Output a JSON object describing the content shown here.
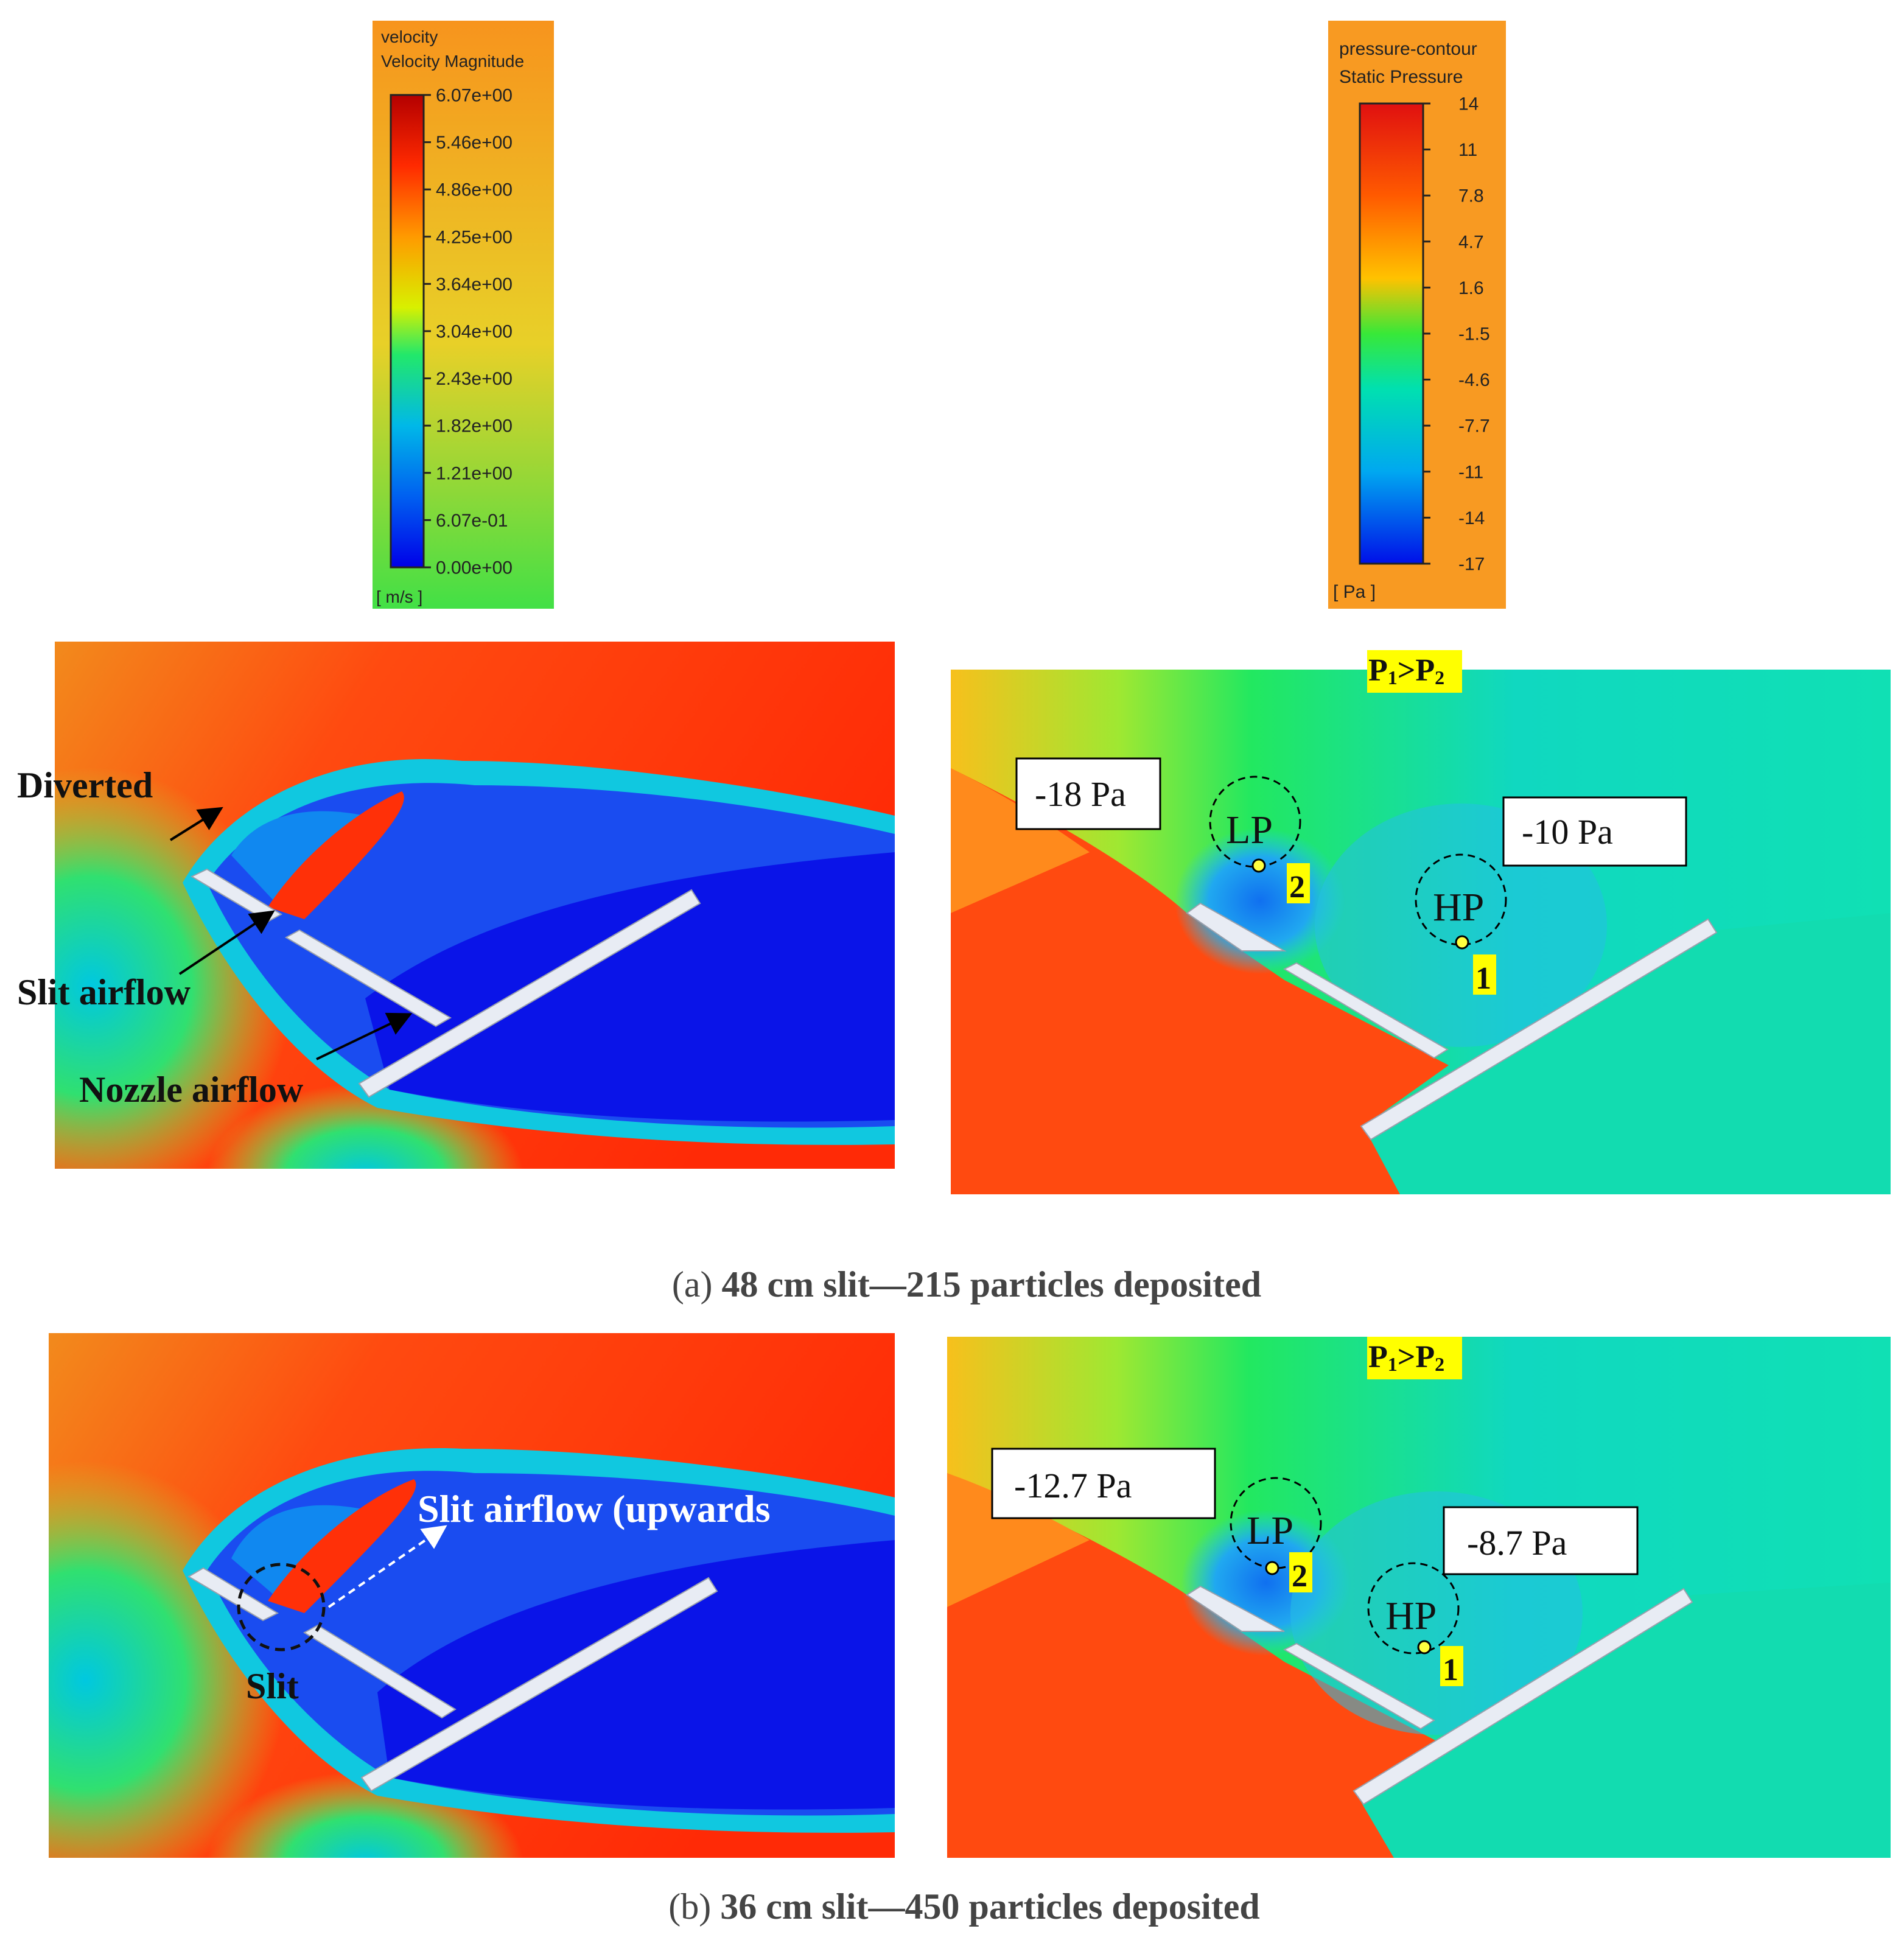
{
  "velocity_legend": {
    "title": "velocity",
    "subtitle": "Velocity Magnitude",
    "ticks": [
      "6.07e+00",
      "5.46e+00",
      "4.86e+00",
      "4.25e+00",
      "3.64e+00",
      "3.04e+00",
      "2.43e+00",
      "1.82e+00",
      "1.21e+00",
      "6.07e-01",
      "0.00e+00"
    ],
    "unit": "[ m/s ]"
  },
  "pressure_legend": {
    "title": "pressure-contour",
    "subtitle": "Static Pressure",
    "ticks": [
      "14",
      "11",
      "7.8",
      "4.7",
      "1.6",
      "-1.5",
      "-4.6",
      "-7.7",
      "-11",
      "-14",
      "-17"
    ],
    "unit": "[ Pa ]"
  },
  "panel_a": {
    "velocity_labels": {
      "diverted": "Diverted",
      "slit_airflow": "Slit airflow",
      "nozzle_airflow": "Nozzle airflow"
    },
    "pressure": {
      "relation_p": "P",
      "relation_sub1": "1",
      "relation_gt": ">P",
      "relation_sub2": "2",
      "box_left": "-18 Pa",
      "box_right": "-10 Pa",
      "lp": "LP",
      "hp": "HP",
      "point2": "2",
      "point1": "1"
    },
    "caption_label": "(a)",
    "caption_text": " 48 cm slit—215 particles deposited"
  },
  "panel_b": {
    "velocity_labels": {
      "slit_airflow": "Slit airflow (upwards",
      "slit": "Slit"
    },
    "pressure": {
      "relation_p": "P",
      "relation_sub1": "1",
      "relation_gt": ">P",
      "relation_sub2": "2",
      "box_left": "-12.7 Pa",
      "box_right": "-8.7 Pa",
      "lp": "LP",
      "hp": "HP",
      "point2": "2",
      "point1": "1"
    },
    "caption_label": "(b)",
    "caption_text": " 36 cm slit—450 particles deposited"
  },
  "colors": {
    "legend_bg": "#f89a22",
    "highlight": "#ffff00",
    "plate": "#e8ecf4"
  }
}
